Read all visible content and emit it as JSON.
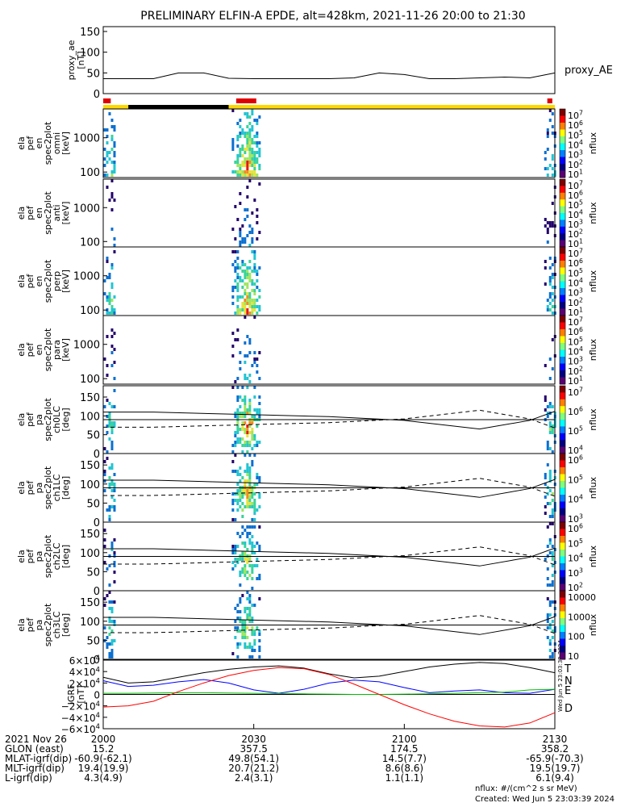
{
  "title": "PRELIMINARY ELFIN-A EPDE, alt=428km, 2021-11-26 20:00 to 21:30",
  "sidebar_stamp": "Wed Jun  5 23:03:39 2024",
  "chart_data": [
    {
      "type": "line",
      "name": "proxy_ae",
      "ylabel": [
        "proxy_ae",
        "[nT]"
      ],
      "ylim": [
        0,
        150
      ],
      "yticks": [
        "150",
        "100",
        "50",
        "0"
      ],
      "legend": "proxy_AE",
      "x": [
        0,
        5,
        10,
        15,
        20,
        25,
        30,
        35,
        40,
        45,
        50,
        55,
        60,
        65,
        70,
        75,
        80,
        85,
        90
      ],
      "values": [
        36,
        36,
        36,
        50,
        50,
        37,
        36,
        36,
        36,
        36,
        38,
        50,
        46,
        36,
        36,
        38,
        40,
        38,
        50
      ]
    },
    {
      "type": "bar",
      "name": "science-zone-indicator",
      "segments": [
        {
          "from": 0,
          "to": 5,
          "color": "#ffd700"
        },
        {
          "from": 5,
          "to": 25,
          "color": "#000000"
        },
        {
          "from": 25,
          "to": 90,
          "color": "#ffd700"
        }
      ],
      "markers": [
        {
          "from": 0,
          "to": 1.5,
          "color": "#e00000"
        },
        {
          "from": 26.5,
          "to": 30.5,
          "color": "#e00000"
        },
        {
          "from": 88.5,
          "to": 89.5,
          "color": "#e00000"
        }
      ]
    },
    {
      "type": "heatmap",
      "name": "ela-pef-en-omni",
      "ylabel": [
        "ela",
        "pef",
        "en",
        "spec2plot",
        "omni",
        "[keV]"
      ],
      "yticks": [
        "1000",
        "100"
      ],
      "colorbar_label": "nflux",
      "colorbar_ticks": [
        "10^7",
        "10^6",
        "10^5",
        "10^4",
        "10^3",
        "10^2",
        "10^1"
      ],
      "bursts": [
        {
          "center": 1.2,
          "intensity": 0.55
        },
        {
          "center": 28.5,
          "intensity": 0.85
        },
        {
          "center": 89.0,
          "intensity": 0.45
        }
      ]
    },
    {
      "type": "heatmap",
      "name": "ela-pef-en-anti",
      "ylabel": [
        "ela",
        "pef",
        "en",
        "spec2plot",
        "anti",
        "[keV]"
      ],
      "yticks": [
        "1000",
        "100"
      ],
      "colorbar_label": "nflux",
      "colorbar_ticks": [
        "10^7",
        "10^6",
        "10^5",
        "10^4",
        "10^3",
        "10^2",
        "10^1"
      ],
      "bursts": [
        {
          "center": 1.2,
          "intensity": 0.2
        },
        {
          "center": 28.5,
          "intensity": 0.25
        },
        {
          "center": 89.0,
          "intensity": 0.2
        }
      ]
    },
    {
      "type": "heatmap",
      "name": "ela-pef-en-perp",
      "ylabel": [
        "ela",
        "pef",
        "en",
        "spec2plot",
        "perp",
        "[keV]"
      ],
      "yticks": [
        "1000",
        "100"
      ],
      "colorbar_label": "nflux",
      "colorbar_ticks": [
        "10^7",
        "10^6",
        "10^5",
        "10^4",
        "10^3",
        "10^2",
        "10^1"
      ],
      "bursts": [
        {
          "center": 1.2,
          "intensity": 0.5
        },
        {
          "center": 28.5,
          "intensity": 0.8
        },
        {
          "center": 89.0,
          "intensity": 0.4
        }
      ]
    },
    {
      "type": "heatmap",
      "name": "ela-pef-en-para",
      "ylabel": [
        "ela",
        "pef",
        "en",
        "spec2plot",
        "para",
        "[keV]"
      ],
      "yticks": [
        "1000",
        "100"
      ],
      "colorbar_label": "nflux",
      "colorbar_ticks": [
        "10^7",
        "10^6",
        "10^5",
        "10^4",
        "10^3",
        "10^2",
        "10^1"
      ],
      "bursts": [
        {
          "center": 1.2,
          "intensity": 0.2
        },
        {
          "center": 28.5,
          "intensity": 0.3
        },
        {
          "center": 89.0,
          "intensity": 0.2
        }
      ]
    },
    {
      "type": "heatmap",
      "name": "ela-pef-pa-ch0LC",
      "ylabel": [
        "ela",
        "pef",
        "pa",
        "spec2plot",
        "ch0LC",
        "[deg]"
      ],
      "ylim": [
        0,
        180
      ],
      "yticks": [
        "150",
        "100",
        "50",
        "0"
      ],
      "colorbar_label": "nflux",
      "colorbar_ticks": [
        "10^7",
        "10^6",
        "10^5",
        "10^4"
      ],
      "lc_values": [
        110,
        110,
        103,
        98,
        88,
        65,
        88,
        112
      ],
      "antilc_values": [
        70,
        70,
        77,
        82,
        92,
        115,
        92,
        68
      ],
      "bursts": [
        {
          "center": 1.2,
          "intensity": 0.5
        },
        {
          "center": 28.5,
          "intensity": 0.8
        },
        {
          "center": 89.0,
          "intensity": 0.5
        }
      ]
    },
    {
      "type": "heatmap",
      "name": "ela-pef-pa-ch1LC",
      "ylabel": [
        "ela",
        "pef",
        "pa",
        "spec2plot",
        "ch1LC",
        "[deg]"
      ],
      "ylim": [
        0,
        180
      ],
      "yticks": [
        "150",
        "100",
        "50",
        "0"
      ],
      "colorbar_label": "nflux",
      "colorbar_ticks": [
        "10^6",
        "10^5",
        "10^4",
        "10^3"
      ],
      "lc_values": [
        110,
        110,
        103,
        98,
        88,
        65,
        88,
        112
      ],
      "antilc_values": [
        70,
        70,
        77,
        82,
        92,
        115,
        92,
        68
      ],
      "bursts": [
        {
          "center": 1.2,
          "intensity": 0.5
        },
        {
          "center": 28.5,
          "intensity": 0.75
        },
        {
          "center": 89.0,
          "intensity": 0.5
        }
      ]
    },
    {
      "type": "heatmap",
      "name": "ela-pef-pa-ch2LC",
      "ylabel": [
        "ela",
        "pef",
        "pa",
        "spec2plot",
        "ch2LC",
        "[deg]"
      ],
      "ylim": [
        0,
        180
      ],
      "yticks": [
        "150",
        "100",
        "50",
        "0"
      ],
      "colorbar_label": "nflux",
      "colorbar_ticks": [
        "10^6",
        "10^5",
        "10^4",
        "10^3",
        "10^2"
      ],
      "lc_values": [
        110,
        110,
        103,
        98,
        88,
        65,
        88,
        112
      ],
      "antilc_values": [
        70,
        70,
        77,
        82,
        92,
        115,
        92,
        68
      ],
      "bursts": [
        {
          "center": 1.2,
          "intensity": 0.3
        },
        {
          "center": 28.5,
          "intensity": 0.6
        },
        {
          "center": 89.0,
          "intensity": 0.4
        }
      ]
    },
    {
      "type": "heatmap",
      "name": "ela-pef-pa-ch3LC",
      "ylabel": [
        "ela",
        "pef",
        "pa",
        "spec2plot",
        "ch3LC",
        "[deg]"
      ],
      "ylim": [
        0,
        180
      ],
      "yticks": [
        "150",
        "100",
        "50",
        "0"
      ],
      "colorbar_label": "nflux",
      "colorbar_ticks": [
        "10000",
        "1000",
        "100",
        "10"
      ],
      "lc_values": [
        110,
        110,
        103,
        98,
        88,
        65,
        88,
        112
      ],
      "antilc_values": [
        70,
        70,
        77,
        82,
        92,
        115,
        92,
        68
      ],
      "bursts": [
        {
          "center": 1.2,
          "intensity": 0.45
        },
        {
          "center": 28.5,
          "intensity": 0.6
        },
        {
          "center": 89.0,
          "intensity": 0.4
        }
      ]
    },
    {
      "type": "line",
      "name": "igrf",
      "ylabel": [
        "IGRF",
        "[nT]"
      ],
      "ylim": [
        -60000,
        60000
      ],
      "yticks": [
        "6×10^4",
        "4×10^4",
        "2×10^4",
        "0",
        "−2×10^4",
        "−4×10^4",
        "−6×10^4"
      ],
      "x": [
        0,
        5,
        10,
        15,
        20,
        25,
        30,
        35,
        40,
        45,
        50,
        55,
        60,
        65,
        70,
        75,
        80,
        85,
        90
      ],
      "series": [
        {
          "name": "T",
          "color": "#000000",
          "values": [
            30000,
            20000,
            22000,
            30000,
            38000,
            44000,
            48000,
            50000,
            46000,
            36000,
            29000,
            32000,
            40000,
            48000,
            53000,
            56000,
            54000,
            47000,
            38000
          ]
        },
        {
          "name": "N",
          "color": "#0000ff",
          "values": [
            24000,
            14000,
            16000,
            22000,
            26000,
            20000,
            8000,
            2000,
            9000,
            20000,
            25000,
            22000,
            12000,
            3000,
            6000,
            8000,
            3000,
            2000,
            9000
          ]
        },
        {
          "name": "E",
          "color": "#00c000",
          "values": [
            2000,
            2000,
            2500,
            3000,
            3000,
            2500,
            2000,
            1500,
            1000,
            500,
            0,
            0,
            500,
            1000,
            2000,
            3000,
            4000,
            8000,
            9000
          ]
        },
        {
          "name": "D",
          "color": "#ff0000",
          "values": [
            -22000,
            -20000,
            -12000,
            5000,
            20000,
            33000,
            42000,
            47000,
            45000,
            35000,
            18000,
            0,
            -18000,
            -34000,
            -47000,
            -55000,
            -57000,
            -50000,
            -32000
          ]
        }
      ]
    }
  ],
  "x_axis": {
    "ticks": [
      {
        "t": 0,
        "label": "2000"
      },
      {
        "t": 30,
        "label": "2030"
      },
      {
        "t": 60,
        "label": "2100"
      },
      {
        "t": 90,
        "label": "2130"
      }
    ]
  },
  "ephemeris": [
    {
      "label": "2021 Nov 26",
      "values": [
        "2000",
        "2030",
        "2100",
        "2130"
      ]
    },
    {
      "label": "GLON (east)",
      "values": [
        "15.2",
        "357.5",
        "174.5",
        "358.2"
      ]
    },
    {
      "label": "MLAT-igrf(dip)",
      "values": [
        "-60.9(-62.1)",
        "49.8(54.1)",
        "14.5(7.7)",
        "-65.9(-70.3)"
      ]
    },
    {
      "label": "MLT-igrf(dip)",
      "values": [
        "19.4(19.9)",
        "20.7(21.2)",
        "8.6(8.6)",
        "19.5(19.7)"
      ]
    },
    {
      "label": "L-igrf(dip)",
      "values": [
        "4.3(4.9)",
        "2.4(3.1)",
        "1.1(1.1)",
        "6.1(9.4)"
      ]
    }
  ],
  "footer": {
    "units": "nflux: #/(cm^2 s sr MeV)",
    "created": "Created: Wed Jun  5 23:03:39 2024"
  }
}
